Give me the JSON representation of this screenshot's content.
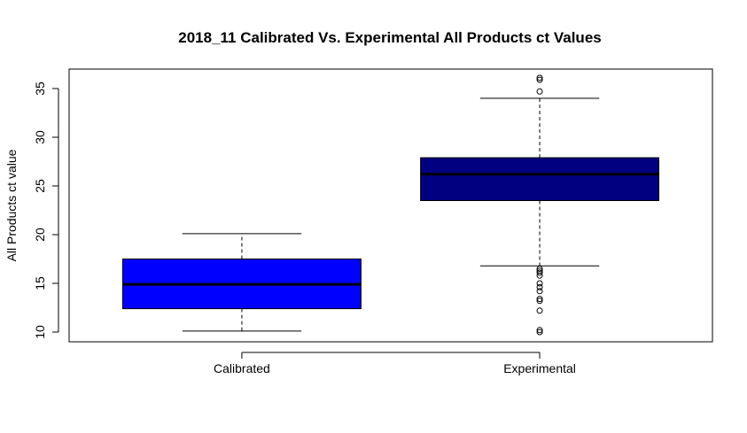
{
  "chart_data": {
    "type": "box",
    "title": "2018_11 Calibrated Vs. Experimental All Products ct Values",
    "xlabel": "",
    "ylabel": "All Products ct value",
    "ylim": [
      9,
      37
    ],
    "yticks": [
      "10",
      "15",
      "20",
      "25",
      "30",
      "35"
    ],
    "grid": false,
    "categories": [
      "Calibrated",
      "Experimental"
    ],
    "boxes": [
      {
        "name": "Calibrated",
        "color": "#0000FF",
        "whisker_low": 10.1,
        "q1": 12.4,
        "median": 14.9,
        "q3": 17.5,
        "whisker_high": 20.1,
        "outliers": []
      },
      {
        "name": "Experimental",
        "color": "#000080",
        "whisker_low": 16.8,
        "q1": 23.5,
        "median": 26.2,
        "q3": 27.9,
        "whisker_high": 34.0,
        "outliers": [
          10.0,
          10.2,
          12.2,
          13.2,
          13.4,
          14.2,
          14.6,
          15.0,
          15.8,
          16.1,
          16.3,
          16.5,
          34.7,
          35.9,
          36.1
        ]
      }
    ]
  }
}
